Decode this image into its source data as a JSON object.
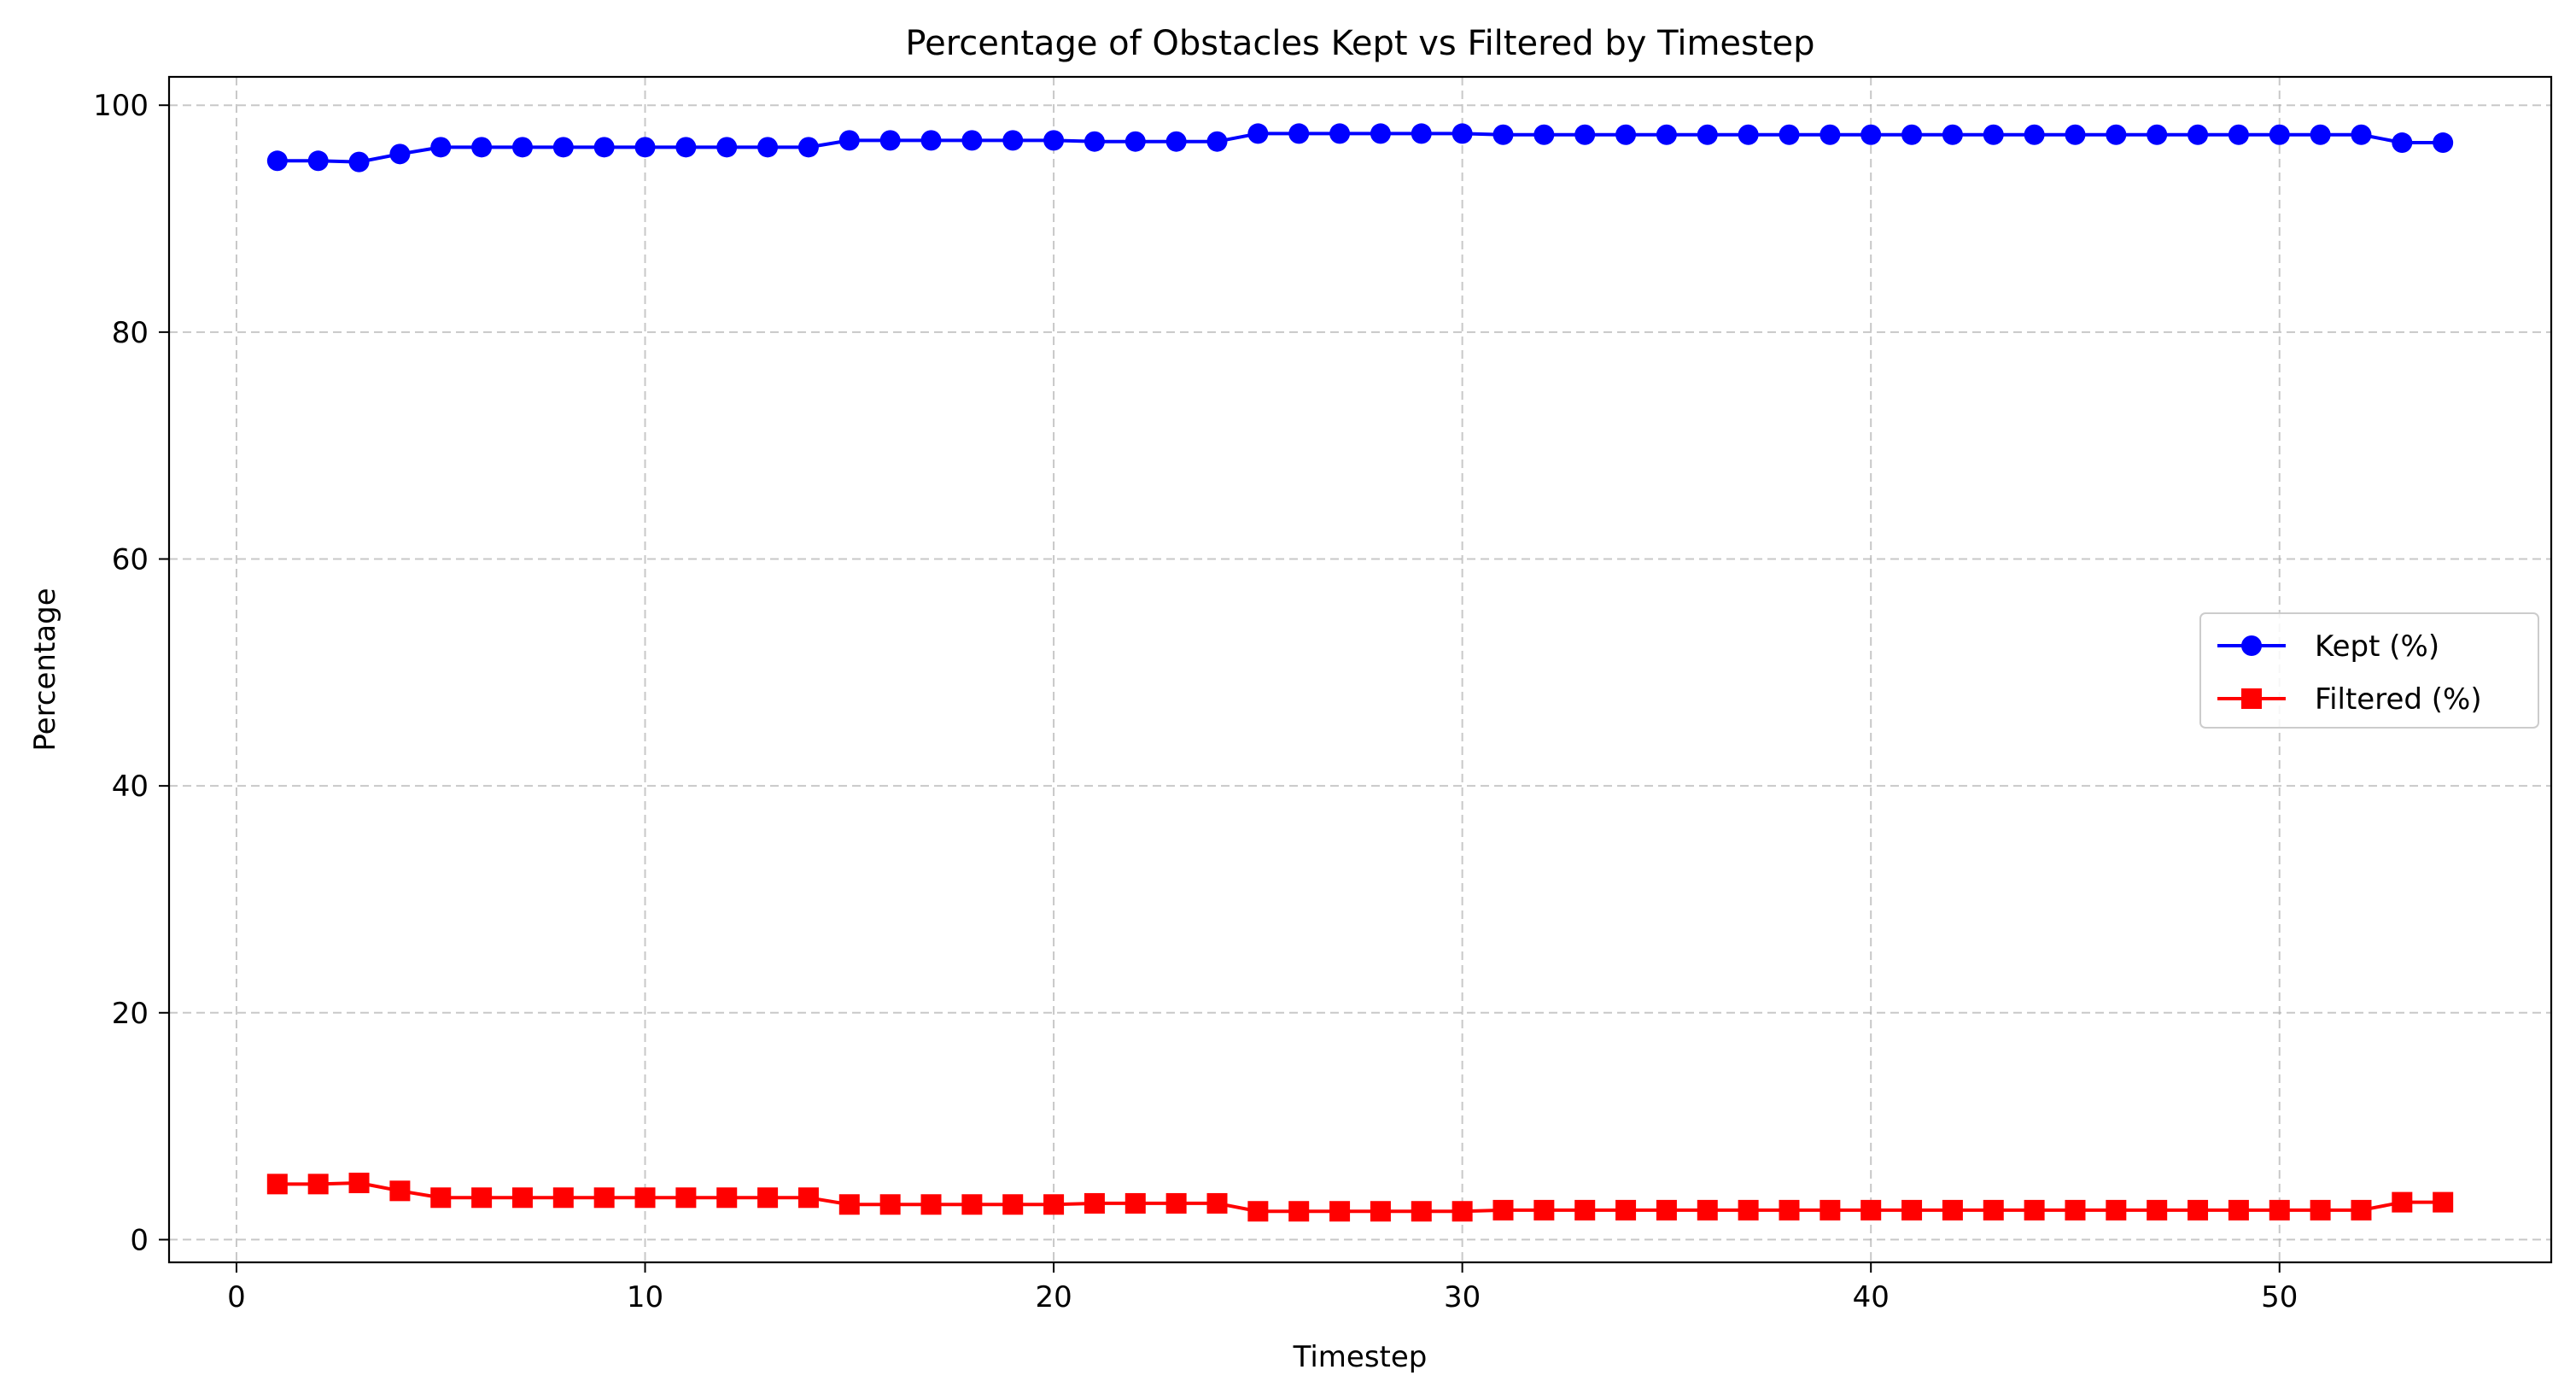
{
  "chart_data": {
    "type": "line",
    "title": "Percentage of Obstacles Kept vs Filtered by Timestep",
    "xlabel": "Timestep",
    "ylabel": "Percentage",
    "xlim": [
      -1.65,
      56.65
    ],
    "ylim": [
      -2.0,
      102.5
    ],
    "xticks": [
      0,
      10,
      20,
      30,
      40,
      50
    ],
    "yticks": [
      0,
      20,
      40,
      60,
      80,
      100
    ],
    "grid": true,
    "legend_position": "center-right",
    "x": [
      1,
      2,
      3,
      4,
      5,
      6,
      7,
      8,
      9,
      10,
      11,
      12,
      13,
      14,
      15,
      16,
      17,
      18,
      19,
      20,
      21,
      22,
      23,
      24,
      25,
      26,
      27,
      28,
      29,
      30,
      31,
      32,
      33,
      34,
      35,
      36,
      37,
      38,
      39,
      40,
      41,
      42,
      43,
      44,
      45,
      46,
      47,
      48,
      49,
      50,
      51,
      52,
      53,
      54
    ],
    "series": [
      {
        "name": "Kept (%)",
        "color": "#0000ff",
        "marker": "circle",
        "values": [
          95.1,
          95.1,
          95.0,
          95.7,
          96.3,
          96.3,
          96.3,
          96.3,
          96.3,
          96.3,
          96.3,
          96.3,
          96.3,
          96.3,
          96.9,
          96.9,
          96.9,
          96.9,
          96.9,
          96.9,
          96.8,
          96.8,
          96.8,
          96.8,
          97.5,
          97.5,
          97.5,
          97.5,
          97.5,
          97.5,
          97.4,
          97.4,
          97.4,
          97.4,
          97.4,
          97.4,
          97.4,
          97.4,
          97.4,
          97.4,
          97.4,
          97.4,
          97.4,
          97.4,
          97.4,
          97.4,
          97.4,
          97.4,
          97.4,
          97.4,
          97.4,
          97.4,
          96.7,
          96.7
        ]
      },
      {
        "name": "Filtered (%)",
        "color": "#ff0000",
        "marker": "square",
        "values": [
          4.9,
          4.9,
          5.0,
          4.3,
          3.7,
          3.7,
          3.7,
          3.7,
          3.7,
          3.7,
          3.7,
          3.7,
          3.7,
          3.7,
          3.1,
          3.1,
          3.1,
          3.1,
          3.1,
          3.1,
          3.2,
          3.2,
          3.2,
          3.2,
          2.5,
          2.5,
          2.5,
          2.5,
          2.5,
          2.5,
          2.6,
          2.6,
          2.6,
          2.6,
          2.6,
          2.6,
          2.6,
          2.6,
          2.6,
          2.6,
          2.6,
          2.6,
          2.6,
          2.6,
          2.6,
          2.6,
          2.6,
          2.6,
          2.6,
          2.6,
          2.6,
          2.6,
          3.3,
          3.3
        ]
      }
    ]
  }
}
